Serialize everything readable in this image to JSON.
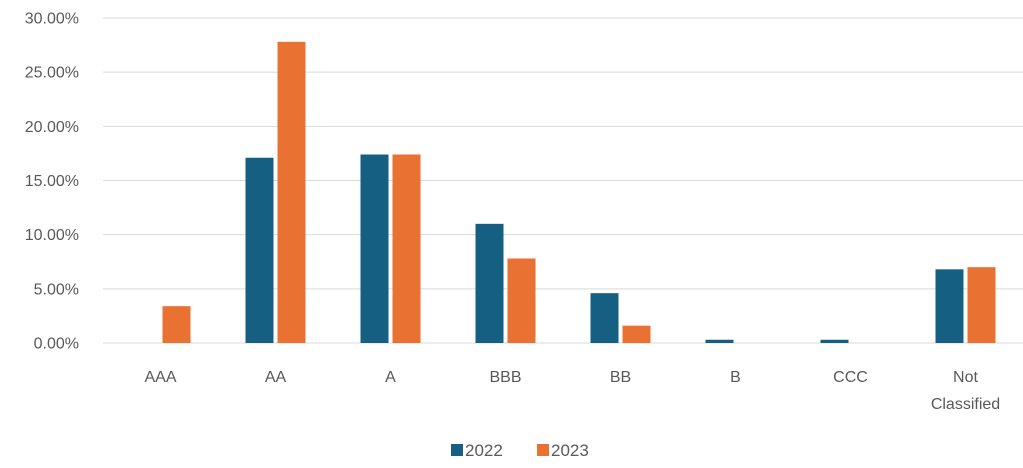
{
  "chart_data": {
    "type": "bar",
    "title": "",
    "xlabel": "",
    "ylabel": "",
    "categories": [
      [
        "AAA"
      ],
      [
        "AA"
      ],
      [
        "A"
      ],
      [
        "BBB"
      ],
      [
        "BB"
      ],
      [
        "B"
      ],
      [
        "CCC"
      ],
      [
        "Not",
        "Classified"
      ]
    ],
    "series": [
      {
        "name": "2022",
        "color": "#156082",
        "values": [
          0.0,
          17.1,
          17.4,
          11.0,
          4.6,
          0.3,
          0.3,
          6.8
        ]
      },
      {
        "name": "2023",
        "color": "#e97132",
        "values": [
          3.4,
          27.8,
          17.4,
          7.8,
          1.6,
          0.0,
          0.0,
          7.0
        ]
      }
    ],
    "ylim": [
      0,
      30
    ],
    "yticks": [
      0,
      5,
      10,
      15,
      20,
      25,
      30
    ],
    "ytick_labels": [
      "0.00%",
      "5.00%",
      "10.00%",
      "15.00%",
      "20.00%",
      "25.00%",
      "30.00%"
    ],
    "grid": true,
    "legend_position": "bottom"
  }
}
